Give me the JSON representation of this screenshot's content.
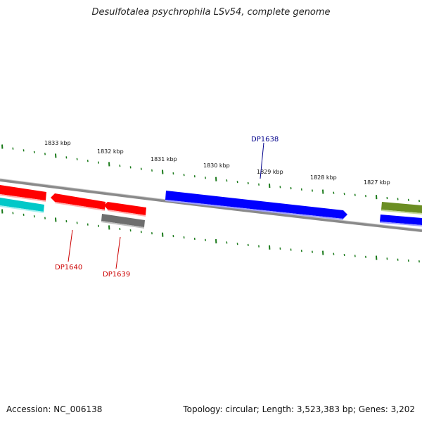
{
  "title": "Desulfotalea psychrophila LSv54, complete genome",
  "footer": {
    "accession": "Accession: NC_006138",
    "info": "Topology: circular; Length: 3,523,383 bp; Genes: 3,202"
  },
  "scale": {
    "tick_labels": [
      "1833 kbp",
      "1832 kbp",
      "1831 kbp",
      "1830 kbp",
      "1829 kbp",
      "1828 kbp",
      "1827 kbp"
    ],
    "color": "#1a7a1a"
  },
  "genes": [
    {
      "id": "DP1640",
      "label": "DP1640",
      "color": "#ff0000"
    },
    {
      "id": "DP1639",
      "label": "DP1639",
      "color": "#ff0000"
    },
    {
      "id": "DP1638",
      "label": "DP1638",
      "color": "#0000ff"
    }
  ],
  "colors": {
    "forward_red": "#ff0000",
    "reverse_gray": "#6e6e6e",
    "blue": "#0000ff",
    "cyan": "#00c8c8",
    "olive": "#6b8e23",
    "backbone": "#8a8a8a"
  }
}
